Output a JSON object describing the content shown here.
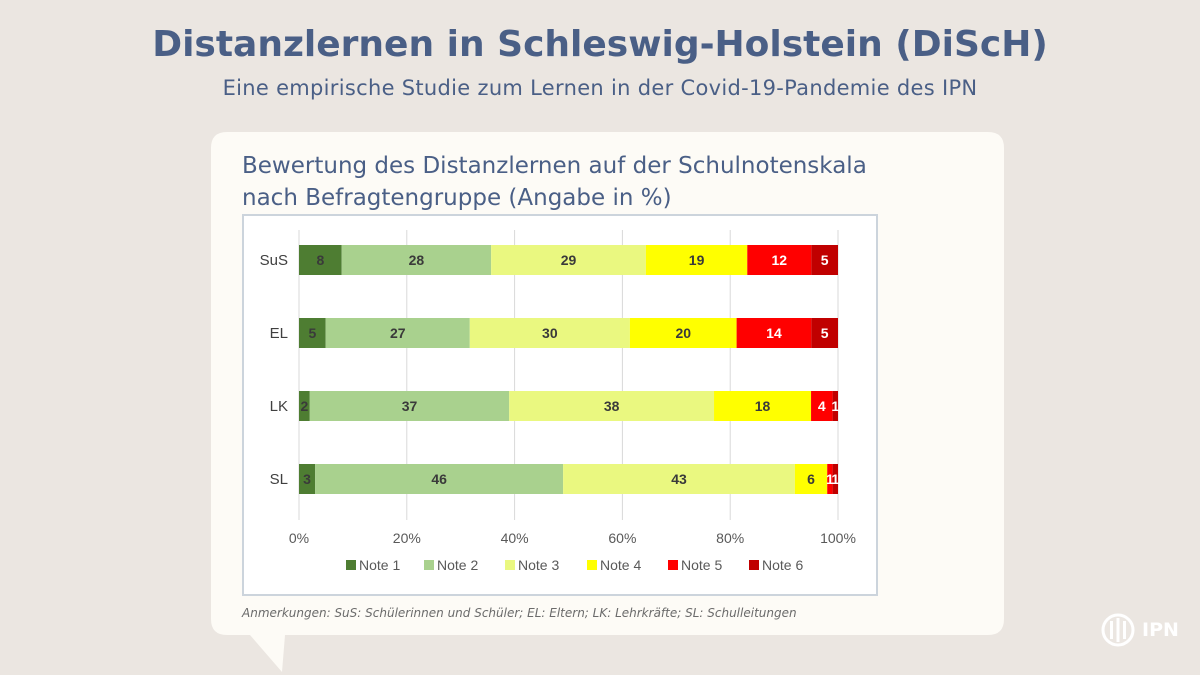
{
  "header": {
    "title": "Distanzlernen in Schleswig-Holstein (DiScH)",
    "subtitle": "Eine empirische Studie zum Lernen in der Covid-19-Pandemie des IPN"
  },
  "card": {
    "heading_line1": "Bewertung des Distanzlernen auf der Schulnotenskala",
    "heading_line2": "nach Befragtengruppe (Angabe in %)",
    "note": "Anmerkungen: SuS: Schülerinnen und Schüler; EL: Eltern; LK: Lehrkräfte; SL: Schulleitungen"
  },
  "logo": {
    "text": "IPN",
    "icon": "ipn-logo-icon"
  },
  "colors": {
    "background": "#ebe6e1",
    "card": "#fdfbf6",
    "title": "#4a5f86"
  },
  "chart_data": {
    "type": "bar",
    "orientation": "horizontal",
    "stacked": "percent",
    "categories": [
      "SuS",
      "EL",
      "LK",
      "SL"
    ],
    "series": [
      {
        "name": "Note 1",
        "color": "#4e7d32",
        "label_color": "#3a3a3a",
        "values": [
          8,
          5,
          2,
          3
        ]
      },
      {
        "name": "Note 2",
        "color": "#a9d18e",
        "label_color": "#3a3a3a",
        "values": [
          28,
          27,
          37,
          46
        ]
      },
      {
        "name": "Note 3",
        "color": "#eaf880",
        "label_color": "#3a3a3a",
        "values": [
          29,
          30,
          38,
          43
        ]
      },
      {
        "name": "Note 4",
        "color": "#ffff00",
        "label_color": "#3a3a3a",
        "values": [
          19,
          20,
          18,
          6
        ]
      },
      {
        "name": "Note 5",
        "color": "#ff0000",
        "label_color": "#ffffff",
        "values": [
          12,
          14,
          4,
          1
        ]
      },
      {
        "name": "Note 6",
        "color": "#c00000",
        "label_color": "#ffffff",
        "values": [
          5,
          5,
          1,
          1
        ]
      }
    ],
    "x_ticks": [
      "0%",
      "20%",
      "40%",
      "60%",
      "80%",
      "100%"
    ],
    "xlim": [
      0,
      100
    ],
    "grid": "vertical",
    "legend": "bottom"
  }
}
